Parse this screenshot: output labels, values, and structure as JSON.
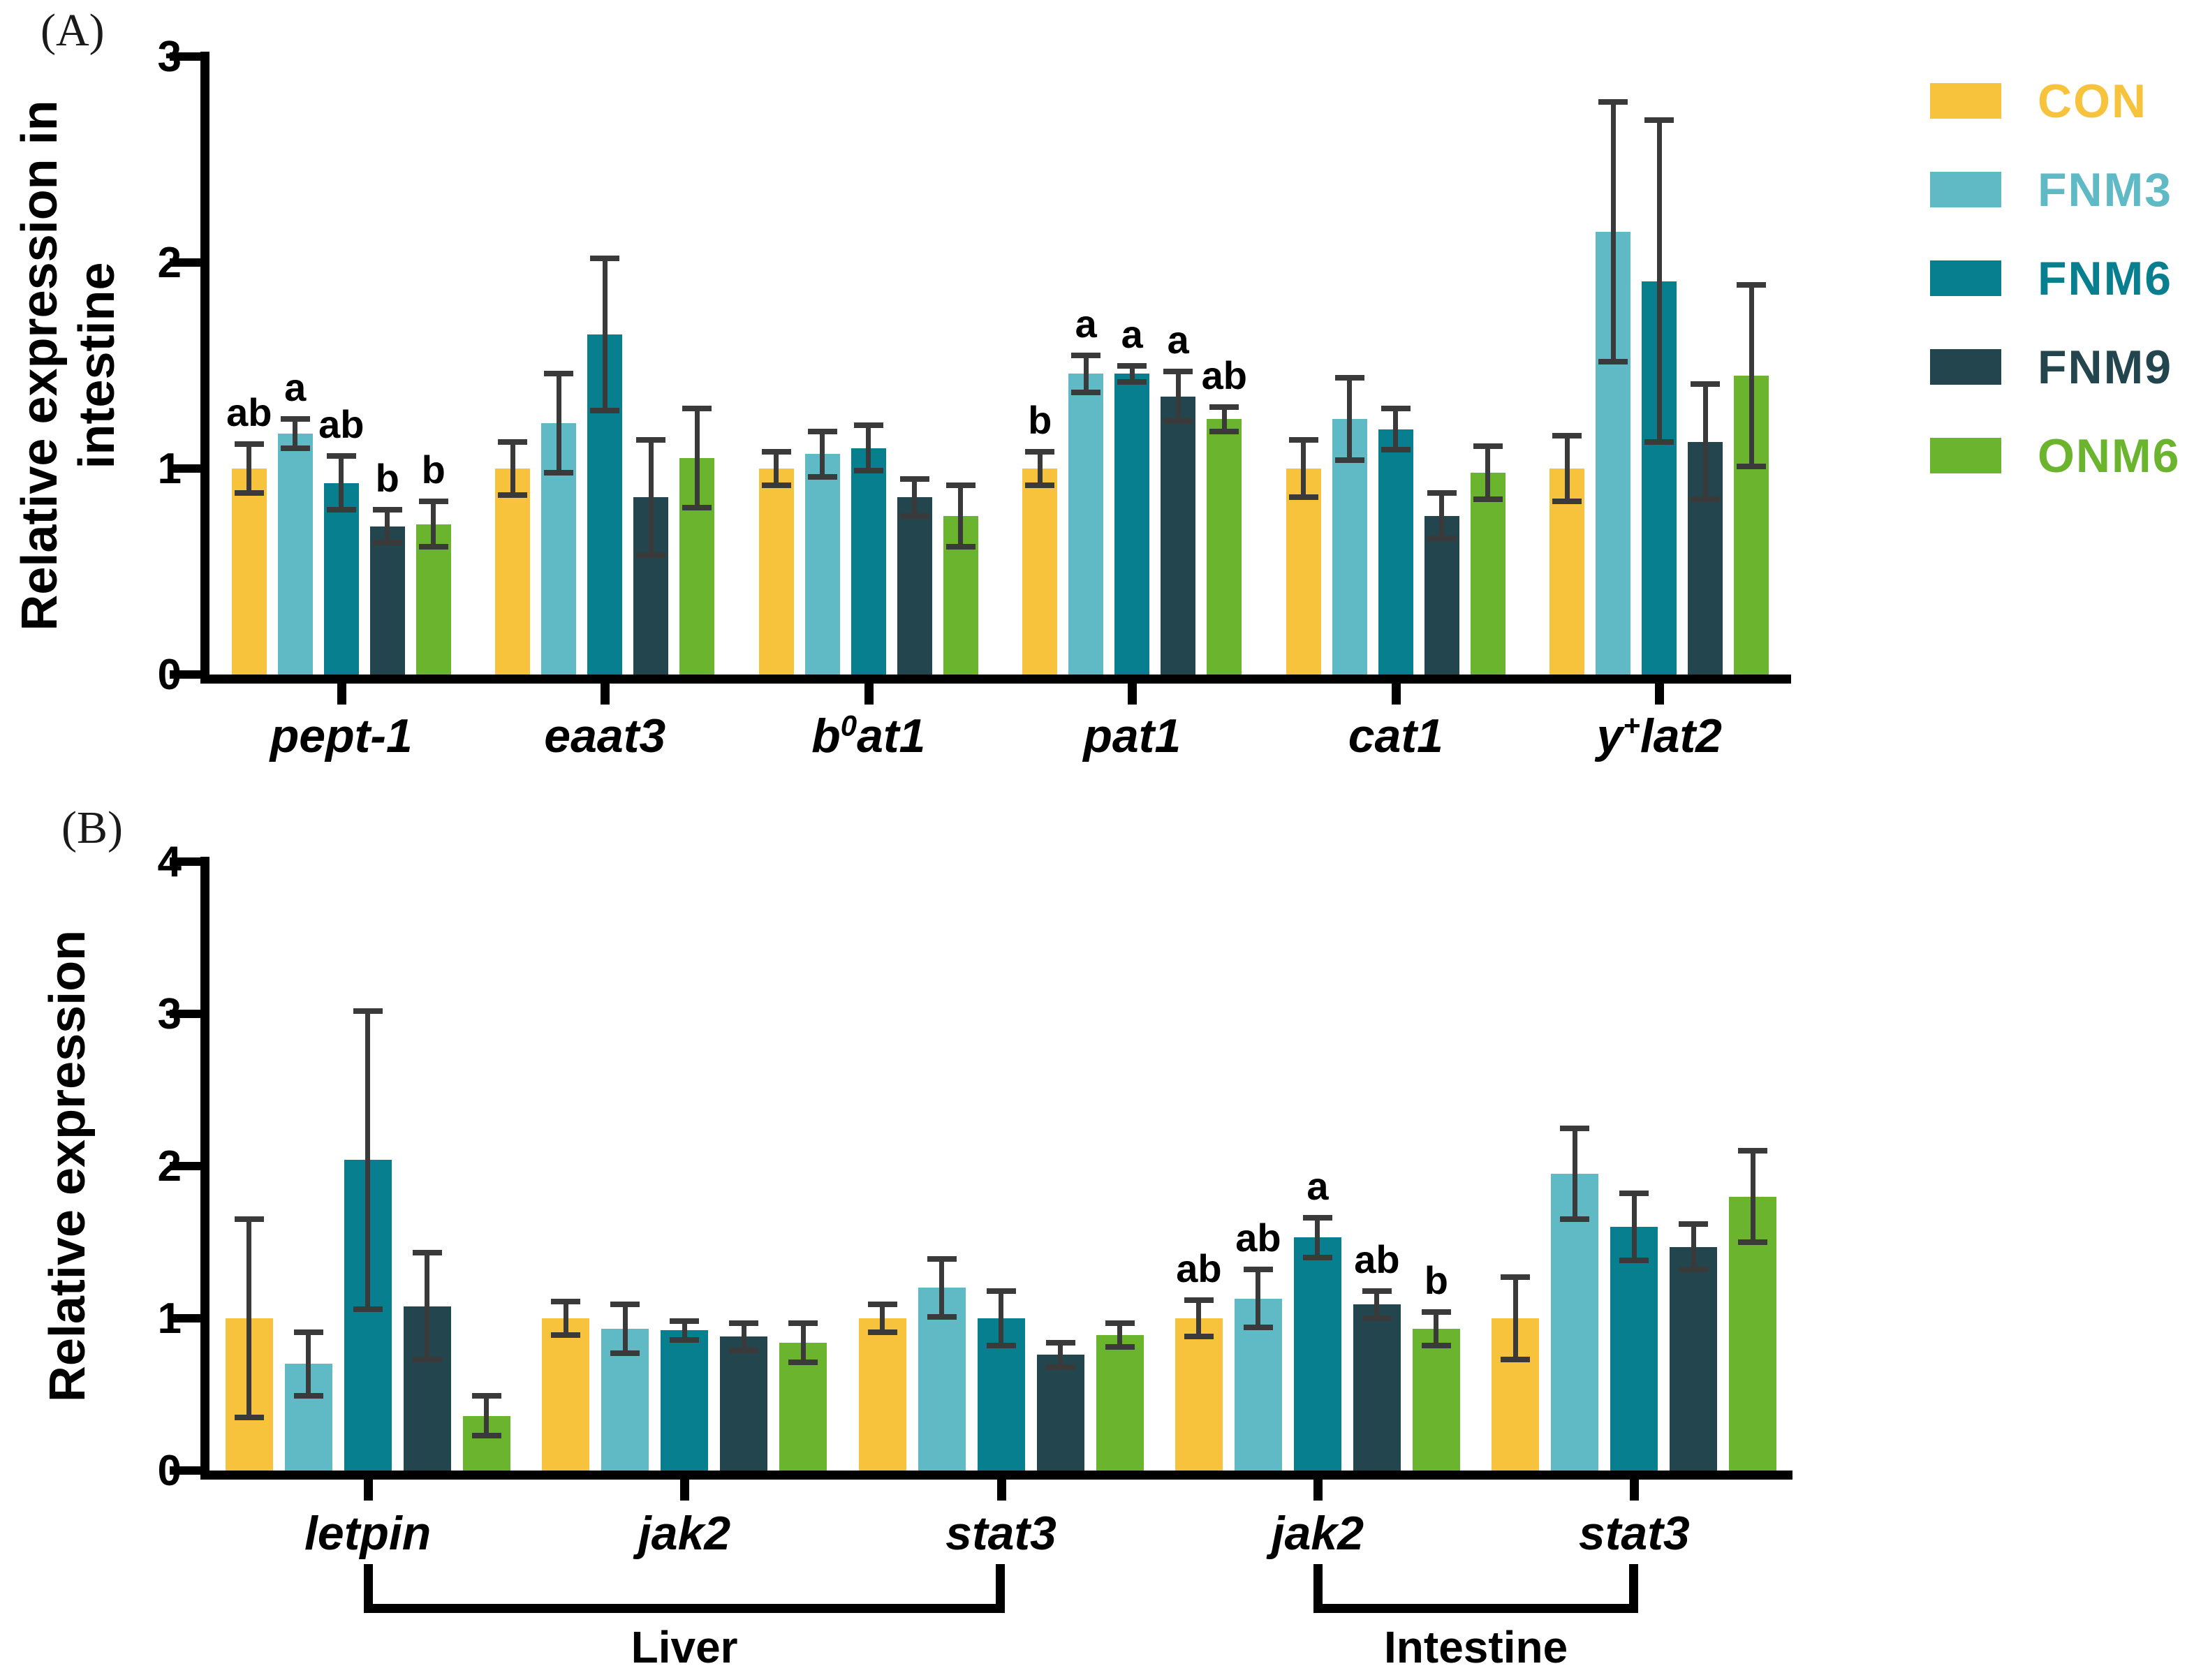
{
  "colors": {
    "axis": "#000000",
    "error_bar": "#3a3a3a",
    "background": "#ffffff",
    "series": {
      "CON": "#F8C33C",
      "FNM3": "#5FBAC6",
      "FNM6": "#087F8E",
      "FNM9": "#23454E",
      "ONM6": "#6AB42E"
    }
  },
  "legend": {
    "items": [
      {
        "label": "CON",
        "color": "#F8C33C"
      },
      {
        "label": "FNM3",
        "color": "#5FBAC6"
      },
      {
        "label": "FNM6",
        "color": "#087F8E"
      },
      {
        "label": "FNM9",
        "color": "#23454E"
      },
      {
        "label": "ONM6",
        "color": "#6AB42E"
      }
    ]
  },
  "chart_data": [
    {
      "panel_label": "(A)",
      "type": "bar",
      "ylabel_lines": [
        "Relative expression in",
        "intestine"
      ],
      "ylim": [
        0,
        3
      ],
      "yticks": [
        0,
        1,
        2,
        3
      ],
      "grid": false,
      "legend_position": "right-top",
      "series": [
        "CON",
        "FNM3",
        "FNM6",
        "FNM9",
        "ONM6"
      ],
      "groups": [
        {
          "label_parts": [
            {
              "t": "pept-1"
            }
          ],
          "letters": [
            "ab",
            "a",
            "ab",
            "b",
            "b"
          ],
          "values": [
            1.0,
            1.17,
            0.93,
            0.72,
            0.73
          ],
          "errors": [
            0.12,
            0.07,
            0.13,
            0.08,
            0.11
          ]
        },
        {
          "label_parts": [
            {
              "t": "eaat3"
            }
          ],
          "values": [
            1.0,
            1.22,
            1.65,
            0.86,
            1.05
          ],
          "errors": [
            0.13,
            0.24,
            0.37,
            0.28,
            0.24
          ]
        },
        {
          "label_parts": [
            {
              "t": "b"
            },
            {
              "t": "0",
              "sup": true
            },
            {
              "t": "at1"
            }
          ],
          "values": [
            1.0,
            1.07,
            1.1,
            0.86,
            0.77
          ],
          "errors": [
            0.08,
            0.11,
            0.11,
            0.09,
            0.15
          ]
        },
        {
          "label_parts": [
            {
              "t": "pat1"
            }
          ],
          "letters": [
            "b",
            "a",
            "a",
            "a",
            "ab"
          ],
          "values": [
            1.0,
            1.46,
            1.46,
            1.35,
            1.24
          ],
          "errors": [
            0.08,
            0.09,
            0.04,
            0.12,
            0.06
          ]
        },
        {
          "label_parts": [
            {
              "t": "cat1"
            }
          ],
          "values": [
            1.0,
            1.24,
            1.19,
            0.77,
            0.98
          ],
          "errors": [
            0.14,
            0.2,
            0.1,
            0.11,
            0.13
          ]
        },
        {
          "label_parts": [
            {
              "t": "y"
            },
            {
              "t": "+",
              "sup": true
            },
            {
              "t": "lat2"
            }
          ],
          "values": [
            1.0,
            2.15,
            1.91,
            1.13,
            1.45
          ],
          "errors": [
            0.16,
            0.63,
            0.78,
            0.28,
            0.44
          ]
        }
      ]
    },
    {
      "panel_label": "(B)",
      "type": "bar",
      "ylabel_lines": [
        "Relative expression"
      ],
      "ylim": [
        0,
        4
      ],
      "yticks": [
        0,
        1,
        2,
        3,
        4
      ],
      "grid": false,
      "series": [
        "CON",
        "FNM3",
        "FNM6",
        "FNM9",
        "ONM6"
      ],
      "groups": [
        {
          "label_parts": [
            {
              "t": "letpin"
            }
          ],
          "values": [
            1.0,
            0.7,
            2.04,
            1.08,
            0.36
          ],
          "errors": [
            0.65,
            0.21,
            0.98,
            0.35,
            0.13
          ]
        },
        {
          "label_parts": [
            {
              "t": "jak2"
            }
          ],
          "values": [
            1.0,
            0.93,
            0.92,
            0.88,
            0.84
          ],
          "errors": [
            0.11,
            0.16,
            0.06,
            0.09,
            0.13
          ]
        },
        {
          "label_parts": [
            {
              "t": "stat3"
            }
          ],
          "values": [
            1.0,
            1.2,
            1.0,
            0.76,
            0.89
          ],
          "errors": [
            0.09,
            0.19,
            0.18,
            0.08,
            0.08
          ]
        },
        {
          "label_parts": [
            {
              "t": "jak2"
            }
          ],
          "letters": [
            "ab",
            "ab",
            "a",
            "ab",
            "b"
          ],
          "values": [
            1.0,
            1.13,
            1.53,
            1.09,
            0.93
          ],
          "errors": [
            0.12,
            0.19,
            0.13,
            0.09,
            0.11
          ]
        },
        {
          "label_parts": [
            {
              "t": "stat3"
            }
          ],
          "values": [
            1.0,
            1.95,
            1.6,
            1.47,
            1.8
          ],
          "errors": [
            0.27,
            0.3,
            0.22,
            0.15,
            0.3
          ]
        }
      ],
      "brackets": [
        {
          "label": "Liver",
          "from": 0,
          "to": 2
        },
        {
          "label": "Intestine",
          "from": 3,
          "to": 4
        }
      ]
    }
  ]
}
